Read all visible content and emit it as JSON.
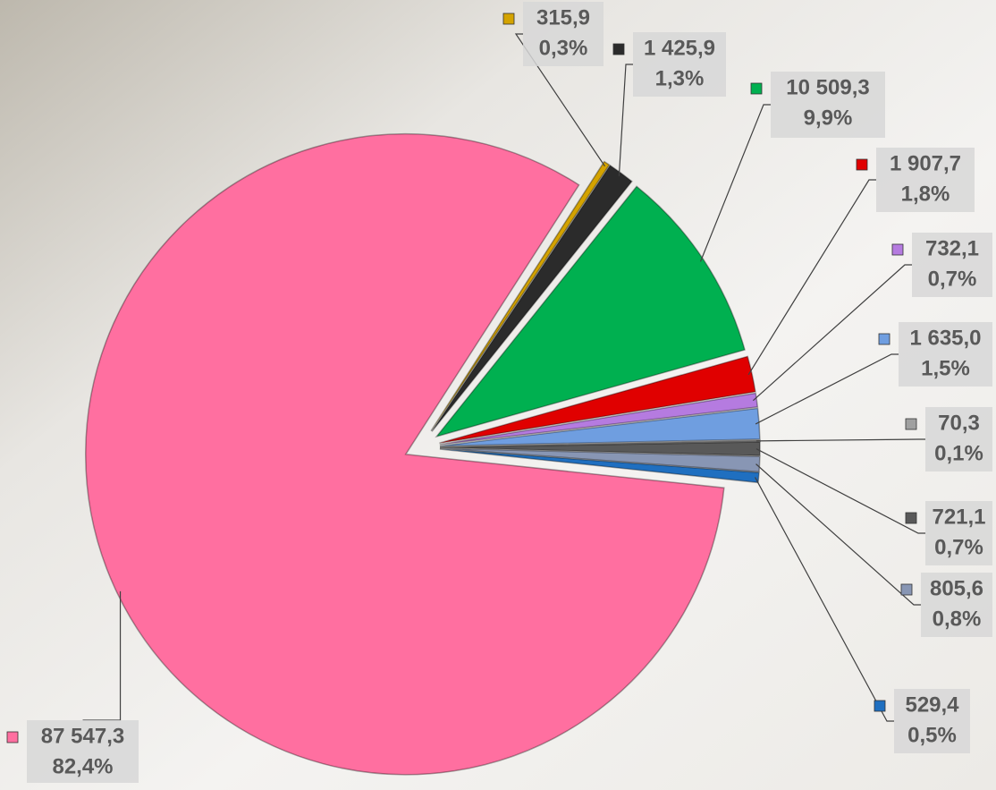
{
  "chart_data": {
    "type": "pie",
    "values": [
      87547.3,
      315.9,
      1425.9,
      10509.3,
      1907.7,
      732.1,
      1635.0,
      70.3,
      721.1,
      805.6,
      529.4
    ],
    "value_labels": [
      "87 547,3",
      "315,9",
      "1 425,9",
      "10 509,3",
      "1 907,7",
      "732,1",
      "1 635,0",
      "70,3",
      "721,1",
      "805,6",
      "529,4"
    ],
    "percent_labels": [
      "82,4%",
      "0,3%",
      "1,3%",
      "9,9%",
      "1,8%",
      "0,7%",
      "1,5%",
      "0,1%",
      "0,7%",
      "0,8%",
      "0,5%"
    ],
    "colors": [
      "#ff6fa0",
      "#d4a300",
      "#2b2b2b",
      "#00b050",
      "#e00000",
      "#b57be0",
      "#6f9ee0",
      "#a0a0a0",
      "#595959",
      "#8896b4",
      "#1f6fc0"
    ]
  }
}
